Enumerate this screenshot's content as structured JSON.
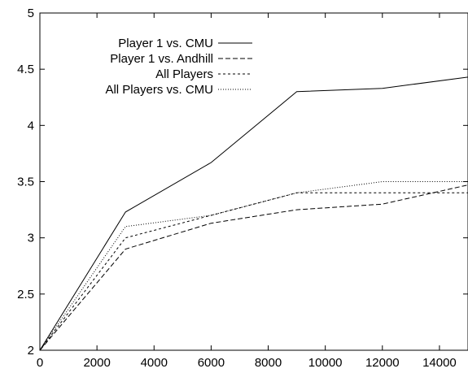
{
  "chart_data": {
    "type": "line",
    "title": "",
    "xlabel": "",
    "ylabel": "",
    "xlim": [
      0,
      15000
    ],
    "ylim": [
      2,
      5
    ],
    "x_ticks": [
      0,
      2000,
      4000,
      6000,
      8000,
      10000,
      12000,
      14000
    ],
    "x_tick_labels": [
      "0",
      "2000",
      "4000",
      "6000",
      "8000",
      "10000",
      "12000",
      "14000"
    ],
    "y_ticks": [
      2,
      2.5,
      3,
      3.5,
      4,
      4.5,
      5
    ],
    "y_tick_labels": [
      "2",
      "2.5",
      "3",
      "3.5",
      "4",
      "4.5",
      "5"
    ],
    "grid": false,
    "legend_position": "top-left",
    "series": [
      {
        "name": "Player 1 vs. CMU",
        "line_style": "solid",
        "x": [
          0,
          3000,
          6000,
          9000,
          12000,
          15000
        ],
        "y": [
          2.0,
          3.23,
          3.67,
          4.3,
          4.33,
          4.43
        ]
      },
      {
        "name": "Player 1 vs. Andhill",
        "line_style": "dashed",
        "x": [
          0,
          3000,
          6000,
          9000,
          12000,
          15000
        ],
        "y": [
          2.0,
          2.9,
          3.13,
          3.25,
          3.3,
          3.47
        ]
      },
      {
        "name": "All Players",
        "line_style": "short-dashed",
        "x": [
          0,
          3000,
          6000,
          9000,
          12000,
          15000
        ],
        "y": [
          2.0,
          3.0,
          3.2,
          3.4,
          3.4,
          3.4
        ]
      },
      {
        "name": "All Players vs. CMU",
        "line_style": "dotted",
        "x": [
          0,
          3000,
          6000,
          9000,
          12000,
          15000
        ],
        "y": [
          2.0,
          3.1,
          3.2,
          3.4,
          3.5,
          3.5
        ]
      }
    ]
  }
}
